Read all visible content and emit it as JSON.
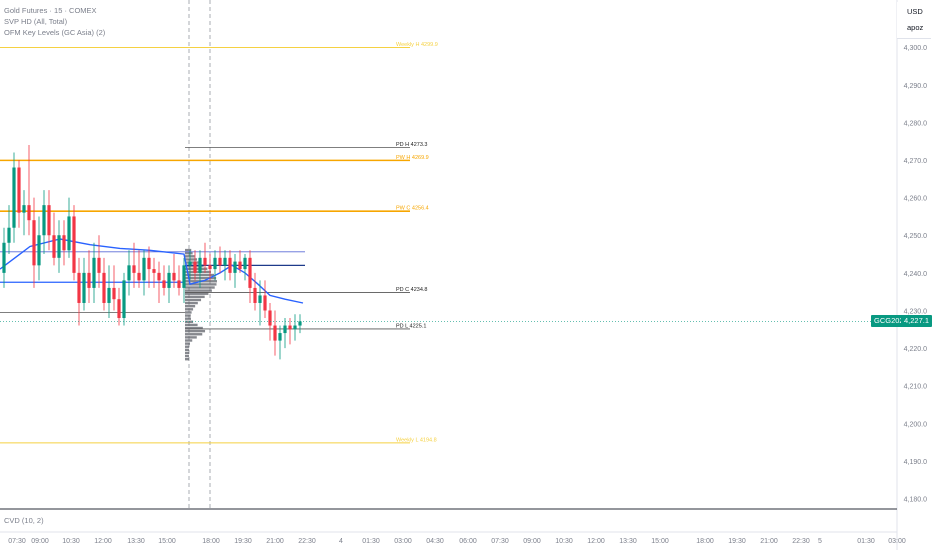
{
  "legend": {
    "symbol_line": "Gold Futures · 15 · COMEX",
    "indicator1": "SVP HD (All, Total)",
    "indicator2": "OFM Key Levels (GC Asia) (2)"
  },
  "cvd_label": "CVD (10, 2)",
  "currency": {
    "code": "USD",
    "sub": "apoz"
  },
  "price_tag": {
    "symbol": "GCG2026",
    "price": "4,227.1",
    "color": "#089981"
  },
  "colors": {
    "up": "#089981",
    "down": "#f23645",
    "vwap": "#2962ff",
    "level_yellow": "#f5d142",
    "level_orange": "#f7a600",
    "level_gray": "#555555"
  },
  "chart_data": {
    "type": "candlestick",
    "y_axis_labels": [
      "4,300.0",
      "4,290.0",
      "4,280.0",
      "4,270.0",
      "4,260.0",
      "4,250.0",
      "4,240.0",
      "4,230.0",
      "4,220.0",
      "4,210.0",
      "4,200.0",
      "4,190.0",
      "4,180.0"
    ],
    "y_axis_values": [
      4300,
      4290,
      4280,
      4270,
      4260,
      4250,
      4240,
      4230,
      4220,
      4210,
      4200,
      4190,
      4180
    ],
    "ylim": [
      4177.5,
      4312
    ],
    "x_axis_labels": [
      "07:30",
      "09:00",
      "10:30",
      "12:00",
      "13:30",
      "15:00",
      "18:00",
      "19:30",
      "21:00",
      "22:30",
      "4",
      "01:30",
      "03:00",
      "04:30",
      "06:00",
      "07:30",
      "09:00",
      "10:30",
      "12:00",
      "13:30",
      "15:00",
      "18:00",
      "19:30",
      "21:00",
      "22:30",
      "5",
      "01:30",
      "03:00"
    ],
    "levels": [
      {
        "label": "Weekly H 4299.9",
        "value": 4299.9,
        "color": "#f5d142",
        "from": 0,
        "to": 410,
        "width": 1
      },
      {
        "label": "PD H 4273.3",
        "value": 4273.3,
        "color": "#555555",
        "from": 185,
        "to": 410,
        "width": 0.8
      },
      {
        "label": "PW H 4269.9",
        "value": 4269.9,
        "color": "#f7a600",
        "from": 0,
        "to": 410,
        "width": 1.6
      },
      {
        "label": "PW C 4256.4",
        "value": 4256.4,
        "color": "#f7a600",
        "from": 0,
        "to": 410,
        "width": 1.6
      },
      {
        "label": "",
        "value": 4245.6,
        "color": "#5b6bd6",
        "from": 0,
        "to": 305,
        "width": 0.8
      },
      {
        "label": "",
        "value": 4242.0,
        "color": "#1e3a8a",
        "from": 185,
        "to": 305,
        "width": 1.2
      },
      {
        "label": "",
        "value": 4237.5,
        "color": "#2962ff",
        "from": 0,
        "to": 185,
        "width": 1.2
      },
      {
        "label": "PD C 4234.8",
        "value": 4234.8,
        "color": "#555555",
        "from": 185,
        "to": 410,
        "width": 0.8
      },
      {
        "label": "",
        "value": 4229.5,
        "color": "#555555",
        "from": 0,
        "to": 185,
        "width": 0.8
      },
      {
        "label": "PD L 4225.1",
        "value": 4225.1,
        "color": "#555555",
        "from": 185,
        "to": 410,
        "width": 0.8
      },
      {
        "label": "Weekly L 4194.8",
        "value": 4194.8,
        "color": "#f5d142",
        "from": 0,
        "to": 410,
        "width": 1
      }
    ],
    "candles": [
      [
        4,
        4240,
        4252,
        4236,
        4248
      ],
      [
        9,
        4248,
        4258,
        4245,
        4252
      ],
      [
        14,
        4252,
        4272,
        4248,
        4268
      ],
      [
        19,
        4268,
        4270,
        4252,
        4256
      ],
      [
        24,
        4256,
        4262,
        4250,
        4258
      ],
      [
        29,
        4258,
        4274,
        4250,
        4254
      ],
      [
        34,
        4254,
        4260,
        4236,
        4242
      ],
      [
        39,
        4242,
        4255,
        4238,
        4250
      ],
      [
        44,
        4250,
        4262,
        4245,
        4258
      ],
      [
        49,
        4258,
        4262,
        4246,
        4250
      ],
      [
        54,
        4250,
        4256,
        4242,
        4244
      ],
      [
        59,
        4244,
        4254,
        4240,
        4250
      ],
      [
        64,
        4250,
        4254,
        4242,
        4246
      ],
      [
        69,
        4246,
        4260,
        4244,
        4255
      ],
      [
        74,
        4255,
        4258,
        4238,
        4240
      ],
      [
        79,
        4240,
        4244,
        4226,
        4232
      ],
      [
        84,
        4232,
        4244,
        4230,
        4240
      ],
      [
        89,
        4240,
        4246,
        4232,
        4236
      ],
      [
        94,
        4236,
        4248,
        4232,
        4244
      ],
      [
        99,
        4244,
        4250,
        4236,
        4240
      ],
      [
        104,
        4240,
        4244,
        4230,
        4232
      ],
      [
        109,
        4232,
        4242,
        4228,
        4236
      ],
      [
        114,
        4236,
        4242,
        4230,
        4233
      ],
      [
        119,
        4233,
        4236,
        4226,
        4228
      ],
      [
        124,
        4228,
        4240,
        4226,
        4238
      ],
      [
        129,
        4238,
        4246,
        4234,
        4242
      ],
      [
        134,
        4242,
        4248,
        4236,
        4240
      ],
      [
        139,
        4240,
        4246,
        4236,
        4238
      ],
      [
        144,
        4238,
        4246,
        4234,
        4244
      ],
      [
        149,
        4244,
        4247,
        4236,
        4241
      ],
      [
        154,
        4241,
        4244,
        4236,
        4240
      ],
      [
        159,
        4240,
        4243,
        4232,
        4238
      ],
      [
        164,
        4238,
        4242,
        4234,
        4236
      ],
      [
        169,
        4236,
        4242,
        4232,
        4240
      ],
      [
        174,
        4240,
        4245,
        4236,
        4238
      ],
      [
        179,
        4238,
        4242,
        4234,
        4236
      ],
      [
        184,
        4236,
        4244,
        4232,
        4242
      ],
      [
        190,
        4242,
        4246,
        4238,
        4243
      ],
      [
        195,
        4243,
        4246,
        4238,
        4240
      ],
      [
        200,
        4240,
        4246,
        4236,
        4244
      ],
      [
        205,
        4244,
        4248,
        4240,
        4242
      ],
      [
        210,
        4242,
        4245,
        4238,
        4241
      ],
      [
        215,
        4241,
        4246,
        4238,
        4244
      ],
      [
        220,
        4244,
        4247,
        4240,
        4242
      ],
      [
        225,
        4242,
        4246,
        4238,
        4244
      ],
      [
        230,
        4244,
        4246,
        4238,
        4240
      ],
      [
        235,
        4240,
        4245,
        4236,
        4243
      ],
      [
        240,
        4243,
        4246,
        4240,
        4241
      ],
      [
        245,
        4241,
        4245,
        4238,
        4244
      ],
      [
        250,
        4244,
        4246,
        4232,
        4236
      ],
      [
        255,
        4236,
        4240,
        4230,
        4232
      ],
      [
        260,
        4232,
        4238,
        4226,
        4234
      ],
      [
        265,
        4234,
        4238,
        4228,
        4230
      ],
      [
        270,
        4230,
        4232,
        4222,
        4226
      ],
      [
        275,
        4226,
        4230,
        4218,
        4222
      ],
      [
        280,
        4222,
        4226,
        4217,
        4224
      ],
      [
        285,
        4224,
        4228,
        4220,
        4226
      ],
      [
        290,
        4226,
        4228,
        4221,
        4225
      ],
      [
        295,
        4225,
        4229,
        4222,
        4226
      ],
      [
        300,
        4226,
        4229,
        4224,
        4227.1
      ]
    ],
    "vwap": [
      [
        0,
        4241
      ],
      [
        10,
        4243
      ],
      [
        30,
        4247
      ],
      [
        60,
        4249
      ],
      [
        90,
        4247.5
      ],
      [
        120,
        4246.5
      ],
      [
        150,
        4246
      ],
      [
        184,
        4245
      ],
      [
        190,
        4237
      ],
      [
        205,
        4238
      ],
      [
        220,
        4240
      ],
      [
        232,
        4242
      ],
      [
        245,
        4240
      ],
      [
        258,
        4237
      ],
      [
        270,
        4234
      ],
      [
        285,
        4233
      ],
      [
        303,
        4232
      ]
    ],
    "profile": {
      "top": 4246,
      "bottom": 4217,
      "poc": 4237.6
    },
    "session_lines_x": [
      189,
      210
    ]
  }
}
